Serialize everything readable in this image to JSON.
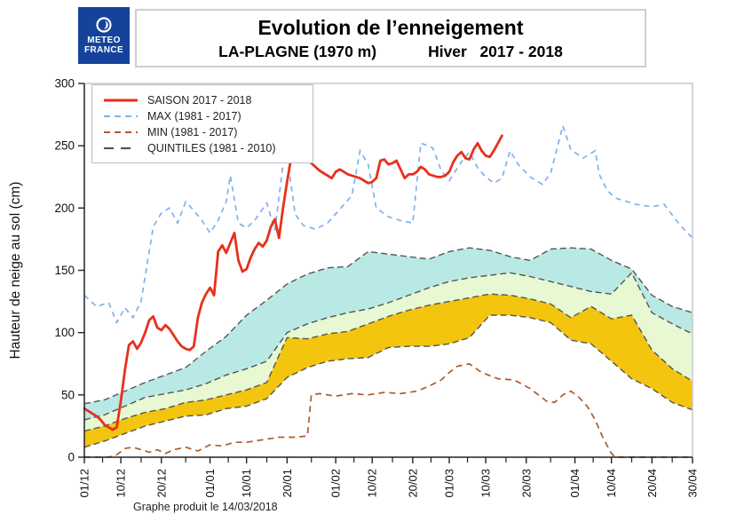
{
  "header": {
    "logo_line1": "METEO",
    "logo_line2": "FRANCE",
    "title": "Evolution de l’enneigement",
    "subtitle_station": "LA-PLAGNE (1970 m)",
    "subtitle_season": "Hiver   2017 - 2018"
  },
  "footer": {
    "caption": "Graphe produit le 14/03/2018"
  },
  "chart_data": {
    "type": "line",
    "title": "Evolution de l’enneigement",
    "station": "LA-PLAGNE (1970 m)",
    "season": "Hiver 2017 - 2018",
    "ylabel": "Hauteur de neige au sol (cm)",
    "ylim": [
      0,
      300
    ],
    "yticks": [
      0,
      50,
      100,
      150,
      200,
      250,
      300
    ],
    "grid": false,
    "legend_position": "top-left",
    "x_unit": "days since 01/12",
    "x_range_days": [
      0,
      150
    ],
    "x_major_ticks": [
      {
        "day": 0,
        "label": "01/12"
      },
      {
        "day": 9,
        "label": "10/12"
      },
      {
        "day": 19,
        "label": "20/12"
      },
      {
        "day": 31,
        "label": "01/01"
      },
      {
        "day": 40,
        "label": "10/01"
      },
      {
        "day": 50,
        "label": "20/01"
      },
      {
        "day": 62,
        "label": "01/02"
      },
      {
        "day": 71,
        "label": "10/02"
      },
      {
        "day": 81,
        "label": "20/02"
      },
      {
        "day": 90,
        "label": "01/03"
      },
      {
        "day": 99,
        "label": "10/03"
      },
      {
        "day": 109,
        "label": "20/03"
      },
      {
        "day": 121,
        "label": "01/04"
      },
      {
        "day": 130,
        "label": "10/04"
      },
      {
        "day": 140,
        "label": "20/04"
      },
      {
        "day": 150,
        "label": "30/04"
      }
    ],
    "legend": [
      {
        "label": "SAISON 2017 - 2018",
        "color": "#e8301a",
        "dash": "",
        "width": 3
      },
      {
        "label": "MAX (1981 - 2017)",
        "color": "#7fb2ea",
        "dash": "7 5",
        "width": 2
      },
      {
        "label": "MIN (1981 - 2017)",
        "color": "#ad5c2e",
        "dash": "7 5",
        "width": 2
      },
      {
        "label": "QUINTILES (1981 - 2010)",
        "color": "#555555",
        "dash": "11 8",
        "width": 2.2
      }
    ],
    "colors": {
      "saison": "#e8301a",
      "max": "#7fb2ea",
      "min": "#ad5c2e",
      "quintile_outline": "#555555",
      "band_q60_q80": "#b9e9e4",
      "band_q40_q60": "#e7f8d2",
      "band_q20_q40": "#f3c50e",
      "axis": "#222222",
      "frame": "#c9c9c9",
      "logo_blue": "#15439c"
    },
    "bands": [
      {
        "name": "quintile-band-60-80",
        "upper": "q80",
        "lower": "q60",
        "fill": "#b9e9e4"
      },
      {
        "name": "quintile-band-40-60",
        "upper": "q60",
        "lower": "q40",
        "fill": "#e7f8d2"
      },
      {
        "name": "quintile-band-20-40",
        "upper": "q40",
        "lower": "q20",
        "fill": "#f3c50e"
      }
    ],
    "series": {
      "saison": {
        "day_start": 0,
        "day_step": 1,
        "values": [
          39,
          37,
          35,
          33,
          30,
          26,
          24,
          22,
          24,
          45,
          70,
          90,
          93,
          87,
          92,
          100,
          110,
          113,
          104,
          102,
          106,
          103,
          98,
          93,
          89,
          87,
          86,
          89,
          112,
          124,
          131,
          136,
          130,
          165,
          170,
          164,
          172,
          180,
          158,
          149,
          151,
          160,
          167,
          172,
          169,
          174,
          185,
          191,
          176,
          200,
          221,
          240,
          255,
          248,
          244,
          239,
          236,
          233,
          230,
          228,
          226,
          224,
          229,
          231,
          229,
          227,
          226,
          225,
          224,
          222,
          220,
          221,
          224,
          238,
          239,
          235,
          236,
          238,
          231,
          224,
          227,
          227,
          229,
          233,
          231,
          227,
          226,
          225,
          225,
          226,
          229,
          237,
          242,
          245,
          240,
          239,
          247,
          252,
          246,
          242,
          241,
          246,
          252,
          258
        ]
      },
      "max": {
        "days": [
          0,
          3,
          6,
          8,
          10,
          12,
          14,
          17,
          19,
          21,
          23,
          25,
          27,
          29,
          31,
          33,
          35,
          36,
          38,
          40,
          42,
          45,
          47,
          49,
          50,
          52,
          54,
          57,
          60,
          63,
          66,
          68,
          70,
          72,
          75,
          78,
          81,
          83,
          85,
          86,
          88,
          90,
          93,
          95,
          97,
          99,
          101,
          103,
          105,
          107,
          110,
          113,
          115,
          118,
          120,
          123,
          126,
          127,
          129,
          131,
          133,
          136,
          140,
          143,
          147,
          150
        ],
        "values": [
          130,
          121,
          124,
          108,
          120,
          112,
          125,
          185,
          196,
          200,
          188,
          205,
          198,
          190,
          180,
          190,
          205,
          226,
          188,
          184,
          190,
          204,
          182,
          235,
          242,
          195,
          186,
          183,
          188,
          199,
          210,
          246,
          235,
          200,
          193,
          190,
          188,
          252,
          250,
          248,
          230,
          222,
          237,
          245,
          232,
          225,
          220,
          224,
          246,
          235,
          225,
          219,
          228,
          266,
          247,
          240,
          246,
          227,
          214,
          208,
          206,
          203,
          201,
          203,
          186,
          176
        ]
      },
      "min": {
        "days": [
          0,
          6,
          8,
          10,
          12,
          14,
          16,
          18,
          20,
          22,
          25,
          28,
          31,
          34,
          37,
          40,
          44,
          48,
          52,
          55,
          56,
          58,
          62,
          66,
          70,
          74,
          78,
          82,
          85,
          88,
          90,
          92,
          95,
          98,
          102,
          106,
          110,
          114,
          116,
          118,
          120,
          122,
          124,
          126,
          128,
          130,
          131,
          140,
          150
        ],
        "values": [
          0,
          0,
          2,
          7,
          8,
          6,
          4,
          6,
          3,
          6,
          8,
          5,
          10,
          9,
          12,
          12,
          14,
          16,
          16,
          17,
          50,
          51,
          49,
          51,
          50,
          52,
          51,
          53,
          57,
          62,
          68,
          73,
          75,
          68,
          63,
          62,
          55,
          45,
          44,
          50,
          53,
          48,
          41,
          30,
          15,
          3,
          0,
          0,
          0
        ]
      },
      "q80": {
        "days": [
          0,
          5,
          10,
          15,
          20,
          25,
          30,
          35,
          40,
          45,
          50,
          55,
          60,
          65,
          70,
          75,
          80,
          85,
          90,
          95,
          100,
          105,
          110,
          115,
          120,
          125,
          130,
          135,
          140,
          145,
          150
        ],
        "values": [
          43,
          46,
          53,
          60,
          66,
          72,
          85,
          97,
          114,
          126,
          139,
          147,
          152,
          153,
          165,
          163,
          161,
          159,
          165,
          168,
          166,
          161,
          158,
          167,
          168,
          167,
          158,
          151,
          130,
          121,
          116
        ]
      },
      "q60": {
        "days": [
          0,
          5,
          10,
          15,
          20,
          25,
          30,
          35,
          40,
          45,
          50,
          55,
          60,
          65,
          70,
          75,
          80,
          85,
          90,
          95,
          100,
          105,
          110,
          115,
          120,
          125,
          130,
          135,
          140,
          145,
          150
        ],
        "values": [
          30,
          34,
          41,
          48,
          51,
          54,
          59,
          66,
          71,
          77,
          100,
          107,
          112,
          116,
          119,
          124,
          130,
          136,
          141,
          144,
          146,
          148,
          145,
          141,
          137,
          133,
          131,
          148,
          116,
          107,
          99
        ]
      },
      "q40": {
        "days": [
          0,
          5,
          10,
          15,
          20,
          25,
          30,
          35,
          40,
          45,
          50,
          55,
          60,
          65,
          70,
          75,
          80,
          85,
          90,
          95,
          100,
          105,
          110,
          115,
          120,
          125,
          130,
          135,
          140,
          145,
          150
        ],
        "values": [
          21,
          25,
          31,
          36,
          39,
          44,
          46,
          50,
          54,
          60,
          96,
          95,
          99,
          101,
          107,
          113,
          118,
          122,
          125,
          128,
          131,
          130,
          127,
          123,
          112,
          121,
          111,
          114,
          86,
          71,
          61
        ]
      },
      "q20": {
        "days": [
          0,
          5,
          10,
          15,
          20,
          25,
          30,
          35,
          40,
          45,
          50,
          55,
          60,
          65,
          70,
          75,
          80,
          85,
          90,
          95,
          100,
          105,
          110,
          115,
          120,
          125,
          130,
          135,
          140,
          145,
          150
        ],
        "values": [
          8,
          13,
          19,
          25,
          29,
          33,
          34,
          39,
          41,
          47,
          64,
          72,
          77,
          79,
          80,
          88,
          89,
          89,
          91,
          96,
          114,
          114,
          112,
          108,
          94,
          91,
          77,
          63,
          55,
          44,
          38
        ]
      }
    }
  }
}
